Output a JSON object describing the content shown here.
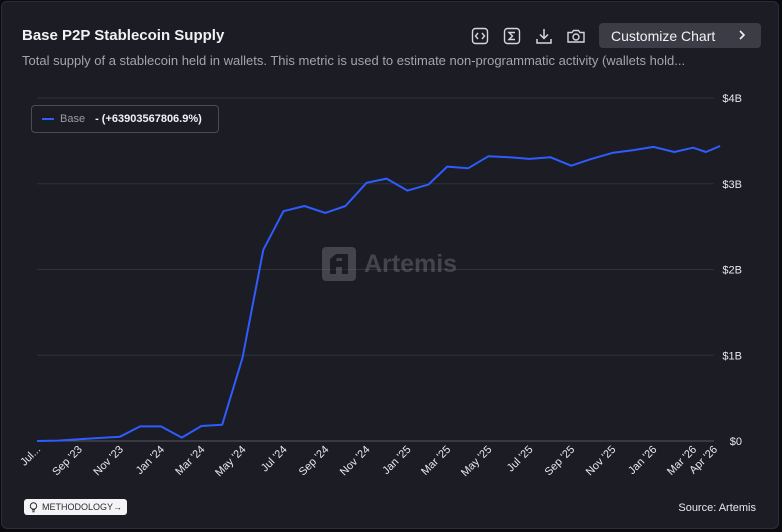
{
  "header": {
    "title": "Base P2P Stablecoin Supply",
    "subtitle": "Total supply of a stablecoin held in wallets. This metric is used to estimate non-programmatic activity (wallets hold...",
    "customize_label": "Customize Chart"
  },
  "toolbar": {
    "icons": [
      "embed-icon",
      "sum-icon",
      "download-icon",
      "camera-icon"
    ]
  },
  "legend": {
    "name": "Base",
    "value": "- (+63903567806.9%)",
    "color": "#2f5cff"
  },
  "watermark": "Artemis",
  "footer": {
    "methodology_label": "METHODOLOGY",
    "source": "Source: Artemis"
  },
  "chart_data": {
    "type": "line",
    "ylim": [
      0,
      4000000000
    ],
    "y_ticks": [
      {
        "value": 0,
        "label": "$0"
      },
      {
        "value": 1000000000,
        "label": "$1B"
      },
      {
        "value": 2000000000,
        "label": "$2B"
      },
      {
        "value": 3000000000,
        "label": "$3B"
      },
      {
        "value": 4000000000,
        "label": "$4B"
      }
    ],
    "x_range": [
      "2023-07-01",
      "2026-04-01"
    ],
    "x_ticks": [
      {
        "date": "2023-07-01",
        "label": "Jul..."
      },
      {
        "date": "2023-09-01",
        "label": "Sep '23"
      },
      {
        "date": "2023-11-01",
        "label": "Nov '23"
      },
      {
        "date": "2024-01-01",
        "label": "Jan '24"
      },
      {
        "date": "2024-03-01",
        "label": "Mar '24"
      },
      {
        "date": "2024-05-01",
        "label": "May '24"
      },
      {
        "date": "2024-07-01",
        "label": "Jul '24"
      },
      {
        "date": "2024-09-01",
        "label": "Sep '24"
      },
      {
        "date": "2024-11-01",
        "label": "Nov '24"
      },
      {
        "date": "2025-01-01",
        "label": "Jan '25"
      },
      {
        "date": "2025-03-01",
        "label": "Mar '25"
      },
      {
        "date": "2025-05-01",
        "label": "May '25"
      },
      {
        "date": "2025-07-01",
        "label": "Jul '25"
      },
      {
        "date": "2025-09-01",
        "label": "Sep '25"
      },
      {
        "date": "2025-11-01",
        "label": "Nov '25"
      },
      {
        "date": "2026-01-01",
        "label": "Jan '26"
      },
      {
        "date": "2026-03-01",
        "label": "Mar '26"
      },
      {
        "date": "2026-04-01",
        "label": "Apr '26"
      }
    ],
    "grid": true,
    "legend_position": "top-left",
    "series": [
      {
        "name": "Base",
        "color": "#2f5cff",
        "points": [
          {
            "x": "2023-07-01",
            "y": 0
          },
          {
            "x": "2023-08-01",
            "y": 5000000
          },
          {
            "x": "2023-09-01",
            "y": 20000000
          },
          {
            "x": "2023-10-01",
            "y": 35000000
          },
          {
            "x": "2023-11-01",
            "y": 50000000
          },
          {
            "x": "2023-12-01",
            "y": 170000000
          },
          {
            "x": "2024-01-01",
            "y": 170000000
          },
          {
            "x": "2024-02-01",
            "y": 40000000
          },
          {
            "x": "2024-03-01",
            "y": 175000000
          },
          {
            "x": "2024-04-01",
            "y": 190000000
          },
          {
            "x": "2024-05-01",
            "y": 970000000
          },
          {
            "x": "2024-06-01",
            "y": 2230000000
          },
          {
            "x": "2024-07-01",
            "y": 2680000000
          },
          {
            "x": "2024-08-01",
            "y": 2740000000
          },
          {
            "x": "2024-09-01",
            "y": 2660000000
          },
          {
            "x": "2024-10-01",
            "y": 2740000000
          },
          {
            "x": "2024-11-01",
            "y": 3010000000
          },
          {
            "x": "2024-12-01",
            "y": 3060000000
          },
          {
            "x": "2025-01-01",
            "y": 2920000000
          },
          {
            "x": "2025-02-01",
            "y": 2990000000
          },
          {
            "x": "2025-03-01",
            "y": 3200000000
          },
          {
            "x": "2025-04-01",
            "y": 3180000000
          },
          {
            "x": "2025-05-01",
            "y": 3320000000
          },
          {
            "x": "2025-06-01",
            "y": 3310000000
          },
          {
            "x": "2025-07-01",
            "y": 3290000000
          },
          {
            "x": "2025-08-01",
            "y": 3310000000
          },
          {
            "x": "2025-09-01",
            "y": 3210000000
          },
          {
            "x": "2025-10-01",
            "y": 3290000000
          },
          {
            "x": "2025-11-01",
            "y": 3360000000
          },
          {
            "x": "2025-12-01",
            "y": 3390000000
          },
          {
            "x": "2026-01-01",
            "y": 3430000000
          },
          {
            "x": "2026-02-01",
            "y": 3370000000
          },
          {
            "x": "2026-03-01",
            "y": 3420000000
          },
          {
            "x": "2026-03-20",
            "y": 3370000000
          },
          {
            "x": "2026-04-10",
            "y": 3440000000
          }
        ]
      }
    ]
  }
}
